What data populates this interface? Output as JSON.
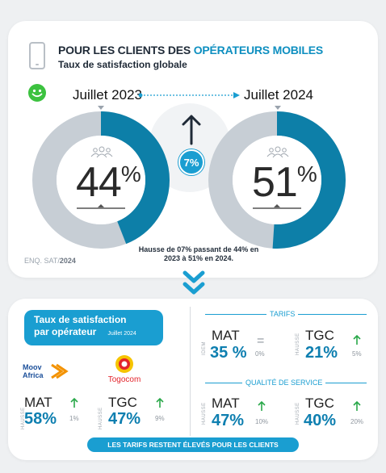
{
  "header": {
    "title_prefix": "POUR LES CLIENTS DES ",
    "title_accent": "OPÉRATEURS MOBILES",
    "subtitle": "Taux de satisfaction globale"
  },
  "comparison": {
    "from_label": "Juillet 2023",
    "to_label": "Juillet 2024",
    "from_value": "44",
    "to_value": "51",
    "percent_sign": "%",
    "from_fraction": 0.44,
    "to_fraction": 0.51,
    "increase": "7%",
    "note": "Hausse de 07% passant de 44% en 2023 à 51% en 2024.",
    "source_prefix": "ENQ. SAT/",
    "source_year": "2024"
  },
  "operators": {
    "tag_line1": "Taux de satisfaction",
    "tag_line2": "par opérateur",
    "tag_date": "Juillet 2024",
    "moov_logo_text_1": "Moov",
    "moov_logo_text_2": "Africa",
    "togocom_logo_text": "Togocom",
    "moov": {
      "name": "MAT",
      "value": "58%",
      "trend_label": "HAUSSE",
      "delta": "1%"
    },
    "togocom": {
      "name": "TGC",
      "value": "47%",
      "trend_label": "HAUSSE",
      "delta": "9%"
    }
  },
  "tarifs": {
    "label": "TARIFS",
    "mat": {
      "name": "MAT",
      "value": "35 %",
      "trend_label": "IDEM",
      "delta": "0%",
      "symbol": "="
    },
    "tgc": {
      "name": "TGC",
      "value": "21%",
      "trend_label": "HAUSSE",
      "delta": "5%"
    }
  },
  "qualite": {
    "label": "QUALITÉ DE SERVICE",
    "mat": {
      "name": "MAT",
      "value": "47%",
      "trend_label": "HAUSSE",
      "delta": "10%"
    },
    "tgc": {
      "name": "TGC",
      "value": "40%",
      "trend_label": "HAUSSE",
      "delta": "20%"
    }
  },
  "footer": {
    "text": "LES TARIFS RESTENT ÉLEVÉS POUR LES CLIENTS"
  },
  "colors": {
    "accent": "#1a9ed1",
    "ring_track": "#c7ced5",
    "ring_fill_dark": "#0d6f94"
  }
}
